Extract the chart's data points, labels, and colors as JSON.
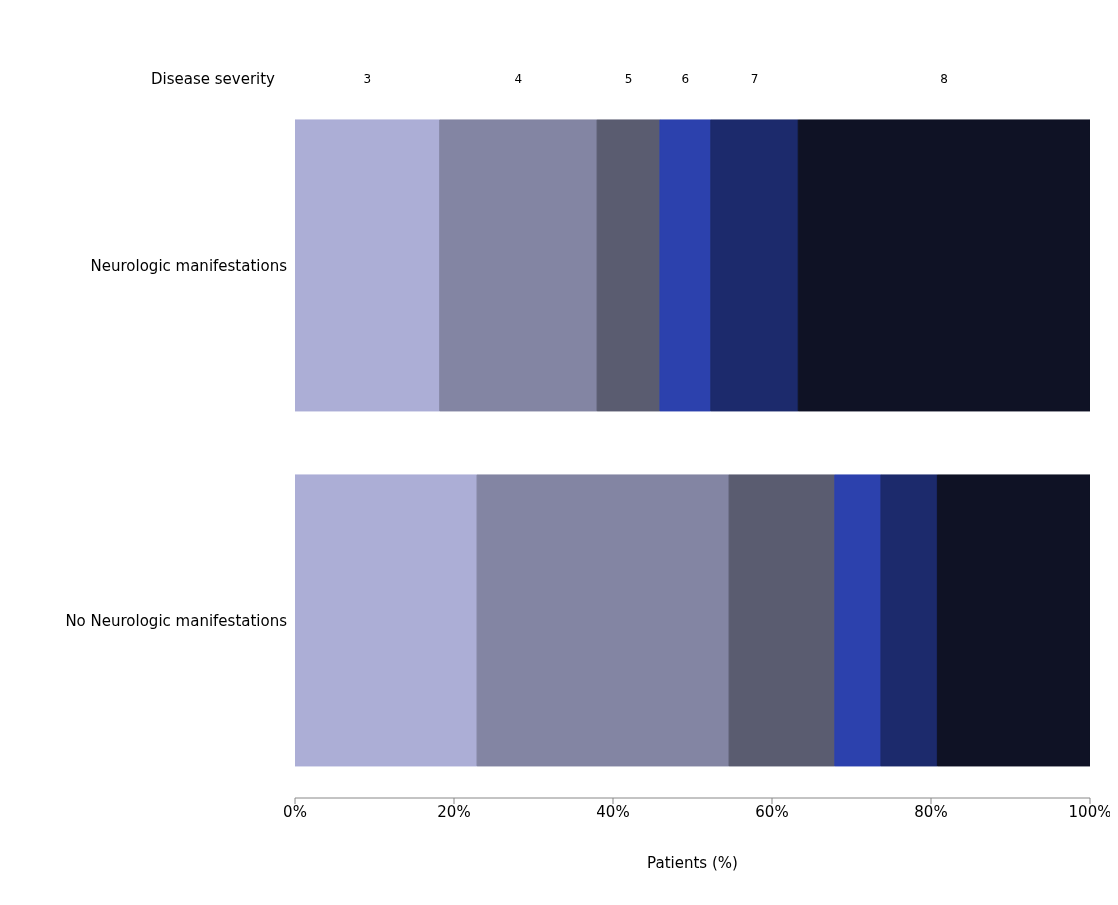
{
  "chart_data": {
    "type": "bar",
    "orientation": "horizontal",
    "stacked": true,
    "legend_title": "Disease severity",
    "legend": "top",
    "xlabel": "Patients (%)",
    "categories": [
      "Neurologic manifestations",
      "No Neurologic manifestations"
    ],
    "series": [
      {
        "name": "3",
        "color": "#acaed6",
        "values": [
          18.2,
          22.9
        ]
      },
      {
        "name": "4",
        "color": "#8385a3",
        "values": [
          19.8,
          31.7
        ]
      },
      {
        "name": "5",
        "color": "#5a5c70",
        "values": [
          7.9,
          13.3
        ]
      },
      {
        "name": "6",
        "color": "#2c41ad",
        "values": [
          6.4,
          5.8
        ]
      },
      {
        "name": "7",
        "color": "#1c2a6c",
        "values": [
          11.0,
          7.1
        ]
      },
      {
        "name": "8",
        "color": "#0f1225",
        "values": [
          36.7,
          19.2
        ]
      }
    ],
    "xlim": [
      0,
      100
    ],
    "xticks": [
      {
        "value": 0,
        "label": "0%"
      },
      {
        "value": 20,
        "label": "20%"
      },
      {
        "value": 40,
        "label": "40%"
      },
      {
        "value": 60,
        "label": "60%"
      },
      {
        "value": 80,
        "label": "80%"
      },
      {
        "value": 100,
        "label": "100%"
      }
    ]
  }
}
